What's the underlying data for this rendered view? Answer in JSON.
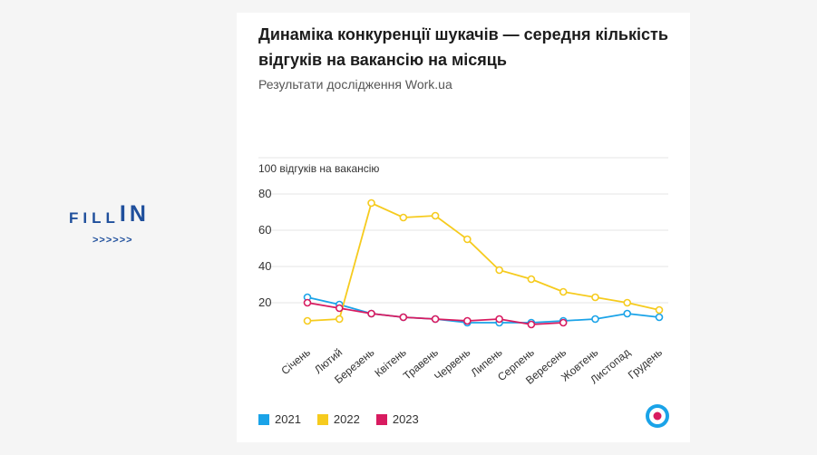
{
  "brand": {
    "logo_small": "FILL",
    "logo_big": "IN",
    "arrows": ">>>>>>"
  },
  "colors": {
    "s2021": "#1aa3e8",
    "s2022": "#f6cb1e",
    "s2023": "#d81b60",
    "grid": "#e6e6e6",
    "brand": "#1f4f9c"
  },
  "chart_data": {
    "type": "line",
    "title": "Динаміка конкуренції шукачів — середня кількість відгуків на вакансію на місяць",
    "subtitle": "Результати дослідження Work.ua",
    "ylabel": "100 відгуків на вакансію",
    "ylim": [
      0,
      100
    ],
    "yticks": [
      20,
      40,
      60,
      80
    ],
    "grid": true,
    "legend_position": "bottom-left",
    "categories": [
      "Січень",
      "Лютий",
      "Березень",
      "Квітень",
      "Травень",
      "Червень",
      "Липень",
      "Серпень",
      "Вересень",
      "Жовтень",
      "Листопад",
      "Грудень"
    ],
    "series": [
      {
        "name": "2021",
        "color": "#1aa3e8",
        "values": [
          23,
          19,
          14,
          12,
          11,
          9,
          9,
          9,
          10,
          11,
          14,
          12
        ]
      },
      {
        "name": "2022",
        "color": "#f6cb1e",
        "values": [
          10,
          11,
          75,
          67,
          68,
          55,
          38,
          33,
          26,
          23,
          20,
          16
        ]
      },
      {
        "name": "2023",
        "color": "#d81b60",
        "values": [
          20,
          17,
          14,
          12,
          11,
          10,
          11,
          8,
          9,
          null,
          null,
          null
        ]
      }
    ]
  }
}
